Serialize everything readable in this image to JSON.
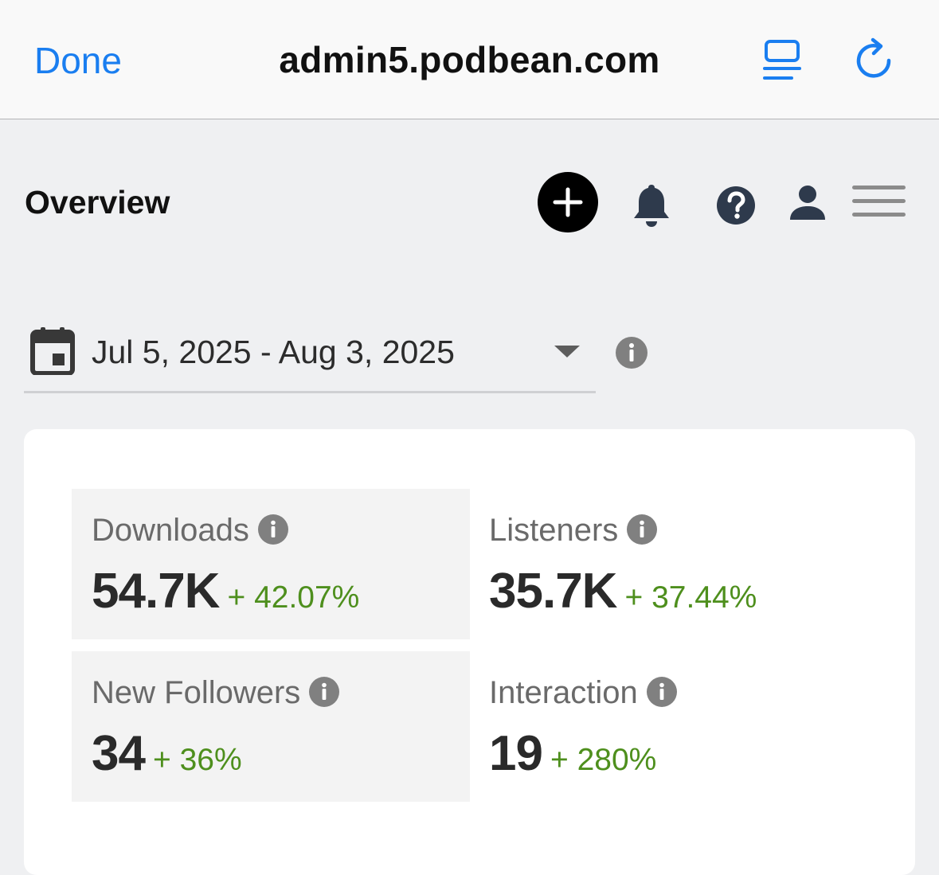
{
  "browser": {
    "done_label": "Done",
    "url": "admin5.podbean.com"
  },
  "header": {
    "title": "Overview"
  },
  "date_range": {
    "value": "Jul 5, 2025 - Aug 3, 2025"
  },
  "stats": [
    {
      "label": "Downloads",
      "value": "54.7K",
      "change": "+ 42.07%"
    },
    {
      "label": "Listeners",
      "value": "35.7K",
      "change": "+ 37.44%"
    },
    {
      "label": "New Followers",
      "value": "34",
      "change": "+ 36%"
    },
    {
      "label": "Interaction",
      "value": "19",
      "change": "+ 280%"
    }
  ],
  "colors": {
    "accent": "#1a7ef0",
    "positive_change": "#4e8f1d",
    "icon_dark": "#2e3a4c",
    "info_icon": "#808080"
  },
  "icons": {
    "reader": "reader-view-icon",
    "reload": "reload-icon",
    "add": "plus-icon",
    "notifications": "bell-icon",
    "help": "question-icon",
    "account": "user-icon",
    "menu": "hamburger-menu-icon",
    "calendar": "calendar-icon",
    "dropdown": "caret-down-icon",
    "info": "info-icon"
  }
}
